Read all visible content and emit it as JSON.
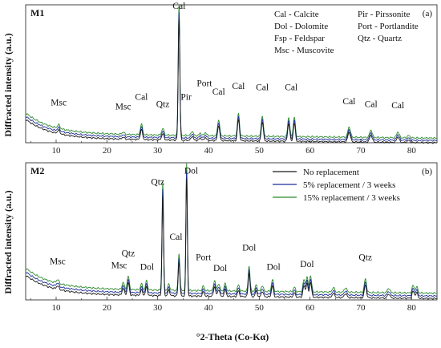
{
  "chart_data": {
    "type": "line",
    "xlabel": "°2-Theta (Co-Kα)",
    "ylabel": "Diffracted intensity (a.u.)",
    "xlim": [
      4,
      85
    ],
    "xticks": [
      10,
      20,
      30,
      40,
      50,
      60,
      70,
      80
    ],
    "colors": {
      "no": "#1a1a1a",
      "p5": "#1f2f9a",
      "p15": "#2e8b2e"
    },
    "panels": [
      {
        "id": "M1",
        "tag": "(a)",
        "ylim": [
          0,
          100
        ],
        "key": [
          [
            "Cal - Calcite",
            "Pir - Pirssonite"
          ],
          [
            "Dol - Dolomite",
            "Port - Portlandite"
          ],
          [
            "Fsp - Feldspar",
            "Qtz - Quartz"
          ],
          [
            "Msc - Muscovite",
            ""
          ]
        ],
        "series": [
          {
            "name": "No replacement",
            "offset": 0
          },
          {
            "name": "5% replacement / 3 weeks",
            "offset": 1.6
          },
          {
            "name": "15% replacement / 3 weeks",
            "offset": 3.3
          }
        ],
        "baseline": {
          "start": 17,
          "mid": 3,
          "end": 0,
          "decay": 5
        },
        "peaks": [
          {
            "x": 10.5,
            "h": 2.5,
            "w": 0.25
          },
          {
            "x": 23.2,
            "h": 1.5,
            "w": 0.25
          },
          {
            "x": 26.8,
            "h": 7,
            "w": 0.22
          },
          {
            "x": 31.0,
            "h": 4.5,
            "w": 0.22
          },
          {
            "x": 34.2,
            "h": 88,
            "w": 0.16
          },
          {
            "x": 36.8,
            "h": 3,
            "w": 0.2
          },
          {
            "x": 38.4,
            "h": 1.8,
            "w": 0.2
          },
          {
            "x": 39.4,
            "h": 2.2,
            "w": 0.2
          },
          {
            "x": 42.0,
            "h": 11,
            "w": 0.2
          },
          {
            "x": 45.9,
            "h": 15,
            "w": 0.2
          },
          {
            "x": 50.6,
            "h": 14,
            "w": 0.2
          },
          {
            "x": 55.8,
            "h": 13,
            "w": 0.2
          },
          {
            "x": 56.9,
            "h": 13,
            "w": 0.2
          },
          {
            "x": 67.7,
            "h": 7,
            "w": 0.25
          },
          {
            "x": 72.0,
            "h": 5,
            "w": 0.25
          },
          {
            "x": 77.3,
            "h": 4,
            "w": 0.25
          },
          {
            "x": 79.4,
            "h": 1.5,
            "w": 0.25
          }
        ],
        "annotations": [
          {
            "text": "Cal",
            "x": 34.2,
            "y": 97
          },
          {
            "text": "Msc",
            "x": 10.5,
            "y": 27
          },
          {
            "text": "Msc",
            "x": 23.2,
            "y": 24
          },
          {
            "text": "Cal",
            "x": 26.8,
            "y": 31
          },
          {
            "text": "Qtz",
            "x": 31.0,
            "y": 26
          },
          {
            "text": "Pir",
            "x": 35.6,
            "y": 31
          },
          {
            "text": "Port",
            "x": 39.2,
            "y": 41
          },
          {
            "text": "Cal",
            "x": 42.0,
            "y": 35
          },
          {
            "text": "Cal",
            "x": 45.9,
            "y": 39
          },
          {
            "text": "Cal",
            "x": 50.6,
            "y": 38
          },
          {
            "text": "Cal",
            "x": 56.3,
            "y": 38
          },
          {
            "text": "Cal",
            "x": 67.7,
            "y": 28
          },
          {
            "text": "Cal",
            "x": 72.0,
            "y": 26
          },
          {
            "text": "Cal",
            "x": 77.3,
            "y": 25
          }
        ]
      },
      {
        "id": "M2",
        "tag": "(b)",
        "ylim": [
          0,
          100
        ],
        "legend": [
          {
            "label": "No replacement",
            "color": "#1a1a1a"
          },
          {
            "label": "5% replacement / 3 weeks",
            "color": "#1f2f9a"
          },
          {
            "label": "15% replacement / 3 weeks",
            "color": "#2e8b2e"
          }
        ],
        "series": [
          {
            "name": "No replacement",
            "offset": 0
          },
          {
            "name": "5% replacement / 3 weeks",
            "offset": 1.8
          },
          {
            "name": "15% replacement / 3 weeks",
            "offset": 3.8
          }
        ],
        "baseline": {
          "start": 18,
          "mid": 4,
          "end": 1,
          "decay": 5
        },
        "peaks": [
          {
            "x": 10.3,
            "h": 2.5,
            "w": 0.25
          },
          {
            "x": 23.2,
            "h": 5,
            "w": 0.2
          },
          {
            "x": 24.2,
            "h": 9,
            "w": 0.2
          },
          {
            "x": 26.8,
            "h": 4,
            "w": 0.2
          },
          {
            "x": 27.8,
            "h": 6,
            "w": 0.2
          },
          {
            "x": 31.0,
            "h": 73,
            "w": 0.15
          },
          {
            "x": 32.2,
            "h": 4,
            "w": 0.2
          },
          {
            "x": 34.2,
            "h": 25,
            "w": 0.16
          },
          {
            "x": 35.7,
            "h": 86,
            "w": 0.14
          },
          {
            "x": 39.0,
            "h": 3,
            "w": 0.2
          },
          {
            "x": 41.2,
            "h": 7,
            "w": 0.2
          },
          {
            "x": 42.0,
            "h": 5,
            "w": 0.2
          },
          {
            "x": 43.3,
            "h": 5,
            "w": 0.2
          },
          {
            "x": 45.9,
            "h": 4,
            "w": 0.2
          },
          {
            "x": 48.0,
            "h": 17,
            "w": 0.18
          },
          {
            "x": 49.4,
            "h": 4,
            "w": 0.2
          },
          {
            "x": 50.6,
            "h": 4,
            "w": 0.2
          },
          {
            "x": 52.6,
            "h": 8,
            "w": 0.2
          },
          {
            "x": 56.9,
            "h": 3,
            "w": 0.2
          },
          {
            "x": 58.8,
            "h": 8,
            "w": 0.2
          },
          {
            "x": 59.4,
            "h": 10,
            "w": 0.2
          },
          {
            "x": 60.1,
            "h": 11,
            "w": 0.2
          },
          {
            "x": 64.6,
            "h": 3,
            "w": 0.25
          },
          {
            "x": 67.0,
            "h": 3,
            "w": 0.25
          },
          {
            "x": 70.9,
            "h": 9,
            "w": 0.22
          },
          {
            "x": 75.5,
            "h": 3,
            "w": 0.25
          },
          {
            "x": 80.3,
            "h": 5,
            "w": 0.22
          },
          {
            "x": 81.0,
            "h": 4,
            "w": 0.22
          }
        ],
        "annotations": [
          {
            "text": "Qtz",
            "x": 30.0,
            "y": 84
          },
          {
            "text": "Dol",
            "x": 36.6,
            "y": 92
          },
          {
            "text": "Cal",
            "x": 33.6,
            "y": 44
          },
          {
            "text": "Msc",
            "x": 10.3,
            "y": 26
          },
          {
            "text": "Msc",
            "x": 22.4,
            "y": 23
          },
          {
            "text": "Qtz",
            "x": 24.2,
            "y": 32
          },
          {
            "text": "Dol",
            "x": 27.9,
            "y": 22
          },
          {
            "text": "Port",
            "x": 39.0,
            "y": 29
          },
          {
            "text": "Dol",
            "x": 42.3,
            "y": 21
          },
          {
            "text": "Dol",
            "x": 48.0,
            "y": 36
          },
          {
            "text": "Dol",
            "x": 52.8,
            "y": 22
          },
          {
            "text": "Dol",
            "x": 59.4,
            "y": 24
          },
          {
            "text": "Qtz",
            "x": 70.9,
            "y": 29
          }
        ]
      }
    ]
  }
}
